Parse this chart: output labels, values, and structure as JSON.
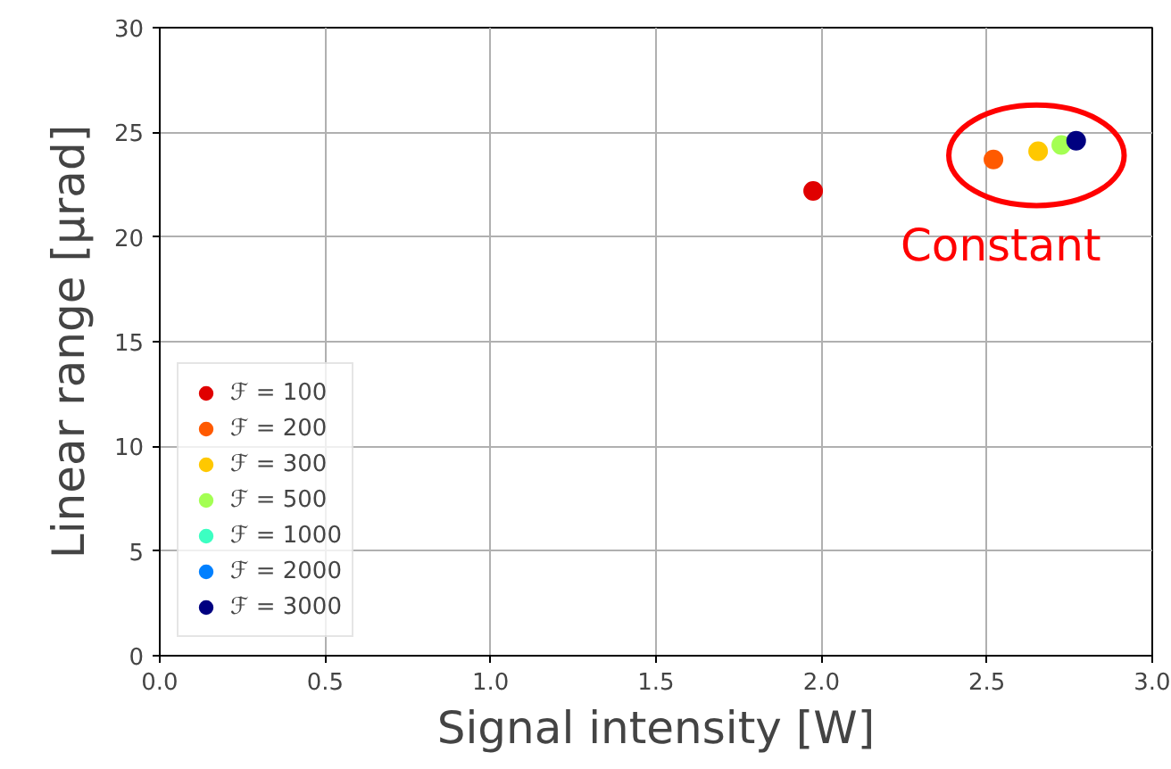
{
  "chart_data": {
    "type": "scatter",
    "xlabel": "Signal intensity [W]",
    "ylabel": "Linear range [μrad]",
    "xlim": [
      0,
      3
    ],
    "ylim": [
      0,
      30
    ],
    "xticks": [
      {
        "value": 0,
        "label": "0.0"
      },
      {
        "value": 0.5,
        "label": "0.5"
      },
      {
        "value": 1,
        "label": "1.0"
      },
      {
        "value": 1.5,
        "label": "1.5"
      },
      {
        "value": 2,
        "label": "2.0"
      },
      {
        "value": 2.5,
        "label": "2.5"
      },
      {
        "value": 3,
        "label": "3.0"
      }
    ],
    "yticks": [
      0,
      5,
      10,
      15,
      20,
      25,
      30
    ],
    "grid": true,
    "legend": "bottom left",
    "marker": "circle",
    "annotations": [
      {
        "text": "Constant",
        "x": 2.65,
        "y": 23.9
      }
    ],
    "series": [
      {
        "name": "ℱ = 100",
        "color": "#e00000",
        "x": [
          1.975
        ],
        "values": [
          22.2
        ]
      },
      {
        "name": "ℱ = 200",
        "color": "#ff5a00",
        "x": [
          2.52
        ],
        "values": [
          23.7
        ]
      },
      {
        "name": "ℱ = 300",
        "color": "#ffc800",
        "x": [
          2.655
        ],
        "values": [
          24.1
        ]
      },
      {
        "name": "ℱ = 500",
        "color": "#a4ff53",
        "x": [
          2.725
        ],
        "values": [
          24.4
        ]
      },
      {
        "name": "ℱ = 1000",
        "color": "#3cffc2",
        "x": [
          null
        ],
        "values": [
          null
        ]
      },
      {
        "name": "ℱ = 2000",
        "color": "#0080ff",
        "x": [
          null
        ],
        "values": [
          null
        ]
      },
      {
        "name": "ℱ = 3000",
        "color": "#000080",
        "x": [
          2.77
        ],
        "values": [
          24.6
        ]
      }
    ]
  }
}
